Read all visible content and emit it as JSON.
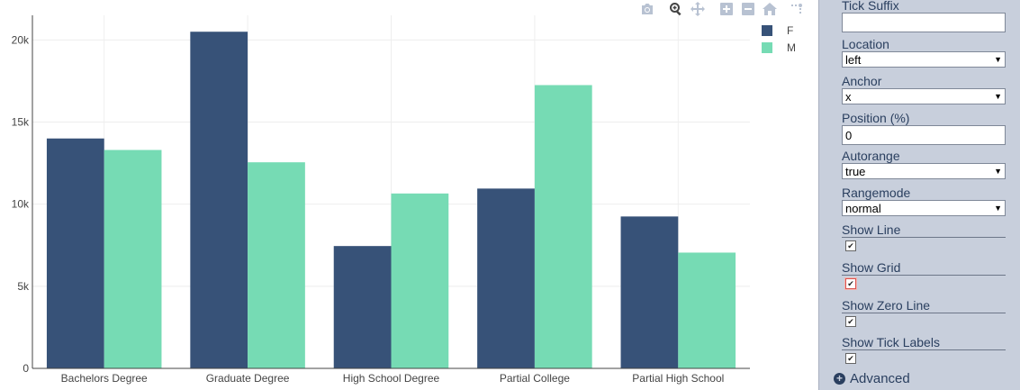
{
  "chart_data": {
    "type": "bar",
    "categories": [
      "Bachelors Degree",
      "Graduate Degree",
      "High School Degree",
      "Partial College",
      "Partial High School"
    ],
    "series": [
      {
        "name": "F",
        "color": "#375278",
        "values": [
          14000,
          20500,
          7450,
          10950,
          9250
        ]
      },
      {
        "name": "M",
        "color": "#76dbb4",
        "values": [
          13300,
          12550,
          10650,
          17250,
          7050
        ]
      }
    ],
    "y_ticks": [
      0,
      5000,
      10000,
      15000,
      20000
    ],
    "y_tick_labels": [
      "0",
      "5k",
      "10k",
      "15k",
      "20k"
    ],
    "ylim": [
      0,
      21500
    ],
    "grid": true,
    "legend_position": "top-right"
  },
  "modebar": {
    "icons": [
      "camera-icon",
      "zoom-icon",
      "pan-icon",
      "zoom-in-icon",
      "zoom-out-icon",
      "home-icon",
      "spike-lines-icon"
    ]
  },
  "panel": {
    "tick_suffix_label": "Tick Suffix",
    "tick_suffix_value": "",
    "location_label": "Location",
    "location_value": "left",
    "anchor_label": "Anchor",
    "anchor_value": "x",
    "position_label": "Position (%)",
    "position_value": "0",
    "autorange_label": "Autorange",
    "autorange_value": "true",
    "rangemode_label": "Rangemode",
    "rangemode_value": "normal",
    "show_line_label": "Show Line",
    "show_grid_label": "Show Grid",
    "show_zero_line_label": "Show Zero Line",
    "show_tick_labels_label": "Show Tick Labels",
    "check_mark": "✔",
    "advanced_label": "Advanced",
    "advanced_icon": "+"
  }
}
